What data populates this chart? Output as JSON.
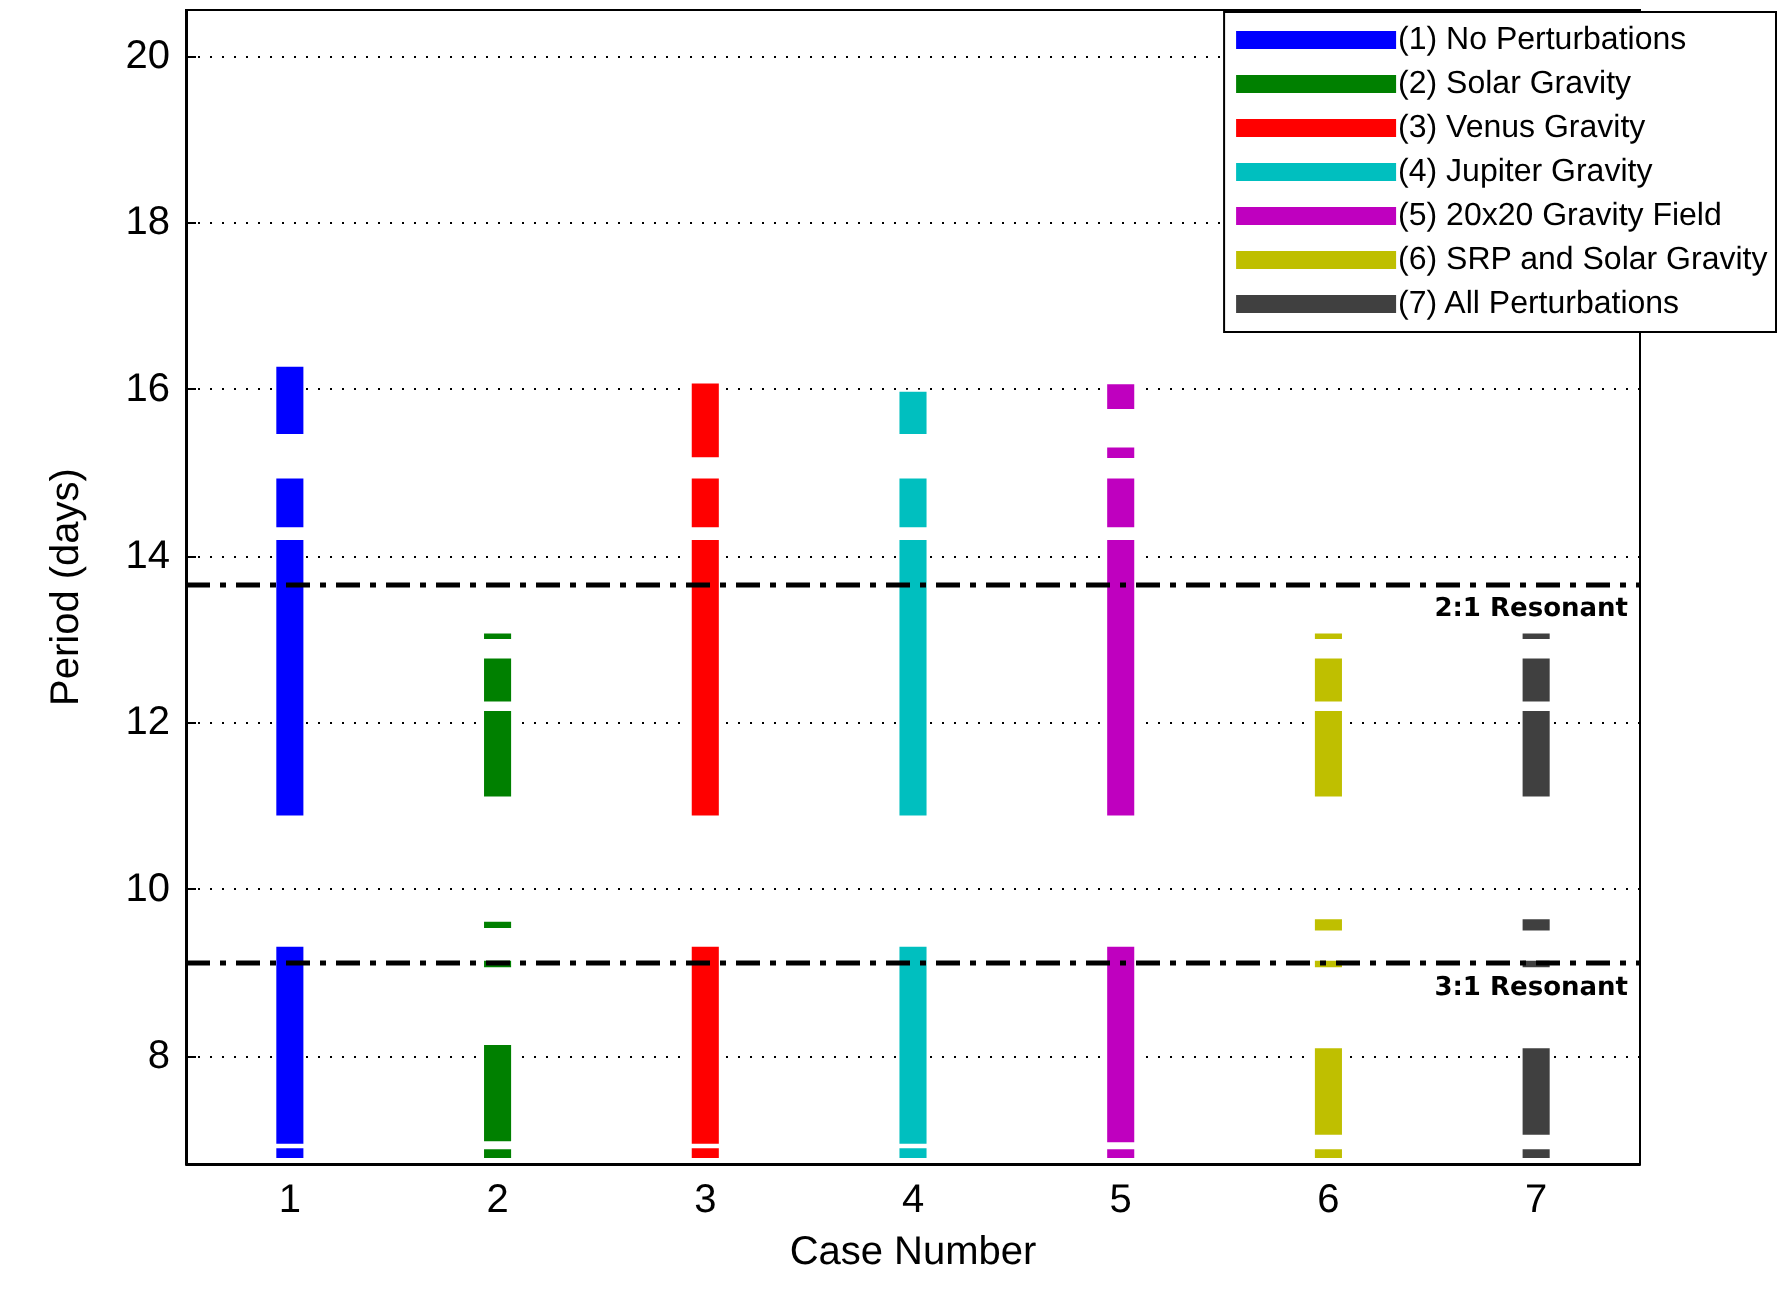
{
  "chart_data": {
    "type": "bar",
    "xlabel": "Case Number",
    "ylabel": "Period (days)",
    "categories": [
      "1",
      "2",
      "3",
      "4",
      "5",
      "6",
      "7"
    ],
    "series": [
      {
        "name": "(1) No Perturbations",
        "color": "#0000ff",
        "x": [
          "1",
          "1",
          "1",
          "1",
          "1"
        ],
        "base": [
          15.45,
          14.33,
          10.87,
          6.93,
          6.76
        ],
        "values": [
          0.83,
          0.61,
          3.33,
          2.39,
          0.14
        ]
      },
      {
        "name": "(2) Solar Gravity",
        "color": "#008000",
        "x": [
          "2",
          "2",
          "2",
          "2",
          "2",
          "2",
          "2"
        ],
        "base": [
          12.99,
          12.24,
          11.1,
          9.52,
          9.05,
          6.96,
          6.76
        ],
        "values": [
          0.09,
          0.54,
          1.05,
          0.1,
          0.1,
          1.18,
          0.13
        ]
      },
      {
        "name": "(3) Venus Gravity",
        "color": "#ff0000",
        "x": [
          "3",
          "3",
          "3",
          "3",
          "3"
        ],
        "base": [
          15.17,
          14.33,
          10.87,
          6.93,
          6.76
        ],
        "values": [
          0.91,
          0.61,
          3.33,
          2.39,
          0.14
        ]
      },
      {
        "name": "(4) Jupiter Gravity",
        "color": "#00bfbf",
        "x": [
          "4",
          "4",
          "4",
          "4",
          "4"
        ],
        "base": [
          15.45,
          14.33,
          10.87,
          6.93,
          6.76
        ],
        "values": [
          0.53,
          0.61,
          3.33,
          2.39,
          0.14
        ]
      },
      {
        "name": "(5) 20x20 Gravity Field",
        "color": "#bf00bf",
        "x": [
          "5",
          "5",
          "5",
          "5",
          "5",
          "5"
        ],
        "base": [
          15.75,
          15.16,
          14.33,
          10.87,
          6.95,
          6.76
        ],
        "values": [
          0.32,
          0.15,
          0.61,
          3.33,
          2.37,
          0.13
        ]
      },
      {
        "name": "(6) SRP and Solar Gravity",
        "color": "#bfbf00",
        "x": [
          "6",
          "6",
          "6",
          "6",
          "6",
          "6",
          "6"
        ],
        "base": [
          12.99,
          12.24,
          11.1,
          9.49,
          9.05,
          7.04,
          6.76
        ],
        "values": [
          0.09,
          0.54,
          1.05,
          0.16,
          0.1,
          1.06,
          0.13
        ]
      },
      {
        "name": "(7) All Perturbations",
        "color": "#404040",
        "x": [
          "7",
          "7",
          "7",
          "7",
          "7",
          "7",
          "7"
        ],
        "base": [
          12.99,
          12.24,
          11.1,
          9.49,
          9.05,
          7.04,
          6.76
        ],
        "values": [
          0.09,
          0.54,
          1.05,
          0.16,
          0.1,
          1.06,
          0.13
        ]
      }
    ],
    "ylim": [
      6.7,
      20.55
    ],
    "yticks": [
      8,
      10,
      12,
      14,
      16,
      18,
      20
    ],
    "grid": "y",
    "legend": "top right",
    "ref_lines": [
      {
        "axis": "y",
        "value": 13.66,
        "color": "#000000",
        "line_style": "dashed"
      },
      {
        "axis": "y",
        "value": 9.11,
        "color": "#000000",
        "line_style": "dashed"
      }
    ],
    "annotations": [
      {
        "text": "2:1 Resonant",
        "y": 13.66
      },
      {
        "text": "3:1 Resonant",
        "y": 9.11
      }
    ]
  }
}
